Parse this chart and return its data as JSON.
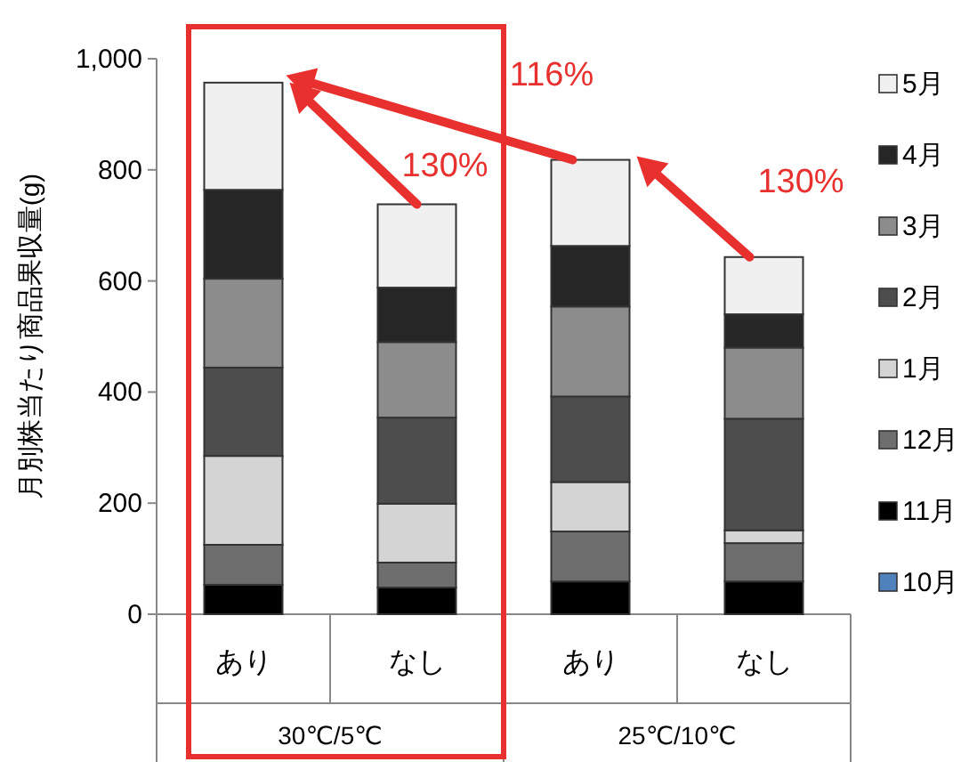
{
  "chart_data": {
    "type": "bar",
    "stacked": true,
    "ylabel": "月別株当たり商品果収量(g)",
    "categories": [
      "あり",
      "なし",
      "あり",
      "なし"
    ],
    "ylim": [
      0,
      1000
    ],
    "yticks": [
      0,
      200,
      400,
      600,
      800,
      {
        "value": 1000,
        "label": "1,000"
      }
    ],
    "grid": false,
    "legend": "right",
    "series": [
      {
        "name": "10月",
        "color": "#4f81bd",
        "values": [
          0,
          0,
          0,
          0
        ]
      },
      {
        "name": "11月",
        "color": "#000000",
        "values": [
          53,
          48,
          59,
          59
        ]
      },
      {
        "name": "12月",
        "color": "#6e6e6e",
        "values": [
          72,
          45,
          90,
          69
        ]
      },
      {
        "name": "1月",
        "color": "#d4d4d4",
        "values": [
          160,
          106,
          89,
          23
        ]
      },
      {
        "name": "2月",
        "color": "#4d4d4d",
        "values": [
          159,
          155,
          154,
          201
        ]
      },
      {
        "name": "3月",
        "color": "#8c8c8c",
        "values": [
          160,
          136,
          162,
          128
        ]
      },
      {
        "name": "4月",
        "color": "#262626",
        "values": [
          160,
          98,
          109,
          60
        ]
      },
      {
        "name": "5月",
        "color": "#f0f0f0",
        "values": [
          193,
          150,
          155,
          103
        ]
      }
    ],
    "annotations": [
      "130%",
      "116%",
      "130%",
      "30℃/5℃",
      "25℃/10℃"
    ]
  }
}
